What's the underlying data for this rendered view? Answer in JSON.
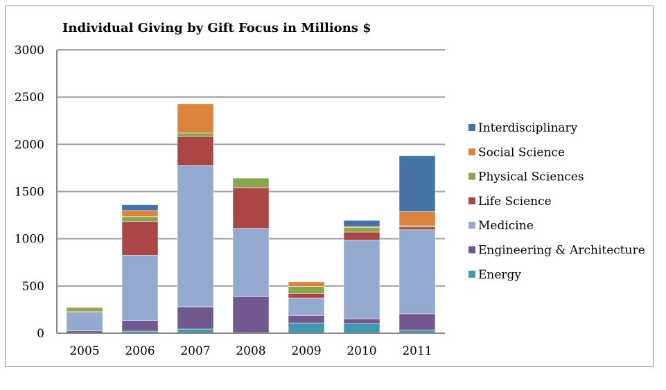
{
  "chart_data": {
    "type": "bar",
    "stacked": true,
    "title": "Individual Giving by Gift Focus in Millions $",
    "xlabel": "",
    "ylabel": "",
    "ylim": [
      0,
      3000
    ],
    "yticks": [
      0,
      500,
      1000,
      1500,
      2000,
      2500,
      3000
    ],
    "grid": true,
    "legend_position": "right",
    "categories": [
      "2005",
      "2006",
      "2007",
      "2008",
      "2009",
      "2010",
      "2011"
    ],
    "series": [
      {
        "name": "Energy",
        "color": "#4198AF",
        "values": [
          0,
          22,
          44,
          5,
          108,
          103,
          34
        ]
      },
      {
        "name": "Engineering & Architecture",
        "color": "#71588F",
        "values": [
          25,
          113,
          235,
          382,
          81,
          49,
          172
        ]
      },
      {
        "name": "Medicine",
        "color": "#93A9CF",
        "values": [
          195,
          691,
          1497,
          723,
          184,
          833,
          890
        ]
      },
      {
        "name": "Life Science",
        "color": "#AA4643",
        "values": [
          10,
          357,
          307,
          431,
          49,
          86,
          29
        ]
      },
      {
        "name": "Physical Sciences",
        "color": "#89A54E",
        "values": [
          40,
          52,
          37,
          101,
          73,
          47,
          12
        ]
      },
      {
        "name": "Social Science",
        "color": "#DB843D",
        "values": [
          7,
          64,
          310,
          0,
          49,
          12,
          150
        ]
      },
      {
        "name": "Interdisciplinary",
        "color": "#4573A7",
        "values": [
          0,
          61,
          0,
          0,
          0,
          64,
          593
        ]
      }
    ]
  }
}
